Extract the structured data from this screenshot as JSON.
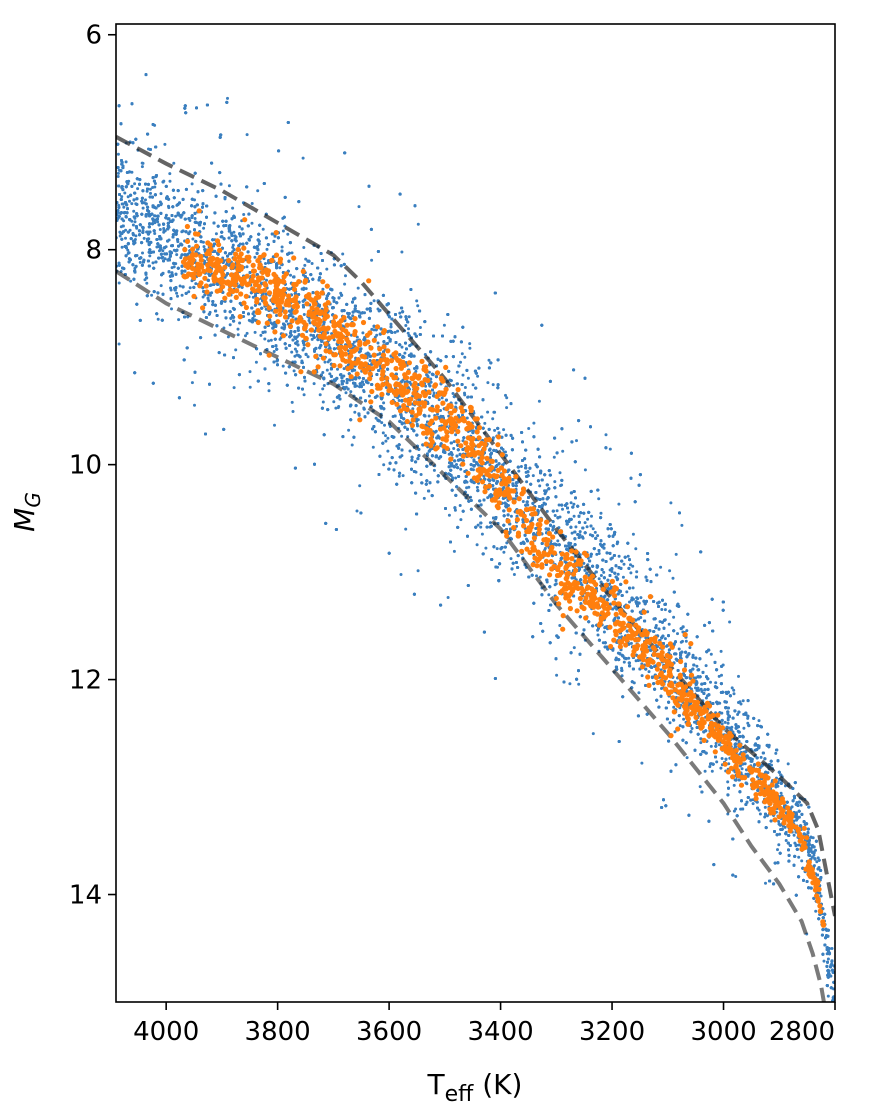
{
  "chart_data": {
    "type": "scatter",
    "title": "",
    "xlabel_main": "T",
    "xlabel_sub": "eff",
    "xlabel_unit": " (K)",
    "ylabel_main": "M",
    "ylabel_sub": "G",
    "xlim": [
      4090,
      2800
    ],
    "ylim": [
      15.0,
      5.9
    ],
    "y_inverted": true,
    "x_inverted": true,
    "grid": false,
    "legend": "none",
    "xticks": [
      4000,
      3800,
      3600,
      3400,
      3200,
      3000,
      2800
    ],
    "yticks": [
      6,
      8,
      10,
      12,
      14
    ],
    "series": [
      {
        "kind": "background-sample",
        "color": "#3a7fbf",
        "point_size": "small",
        "ridge": [
          [
            4090,
            7.65
          ],
          [
            4000,
            7.85
          ],
          [
            3900,
            8.15
          ],
          [
            3800,
            8.45
          ],
          [
            3700,
            8.8
          ],
          [
            3600,
            9.2
          ],
          [
            3500,
            9.65
          ],
          [
            3400,
            10.15
          ],
          [
            3300,
            10.65
          ],
          [
            3200,
            11.2
          ],
          [
            3100,
            11.8
          ],
          [
            3000,
            12.45
          ],
          [
            2950,
            12.8
          ],
          [
            2900,
            13.1
          ],
          [
            2850,
            13.5
          ],
          [
            2830,
            13.9
          ],
          [
            2815,
            14.5
          ],
          [
            2800,
            15.0
          ]
        ],
        "width": [
          [
            4090,
            0.65
          ],
          [
            3800,
            0.7
          ],
          [
            3600,
            0.75
          ],
          [
            3400,
            0.8
          ],
          [
            3200,
            0.7
          ],
          [
            3000,
            0.55
          ],
          [
            2900,
            0.4
          ],
          [
            2800,
            0.3
          ]
        ]
      },
      {
        "kind": "highlighted-sample",
        "color": "#ff7f0e",
        "point_size": "medium",
        "ridge": [
          [
            3970,
            8.1
          ],
          [
            3900,
            8.2
          ],
          [
            3800,
            8.4
          ],
          [
            3700,
            8.75
          ],
          [
            3600,
            9.15
          ],
          [
            3500,
            9.55
          ],
          [
            3450,
            9.8
          ],
          [
            3300,
            10.95
          ],
          [
            3200,
            11.4
          ],
          [
            3100,
            11.95
          ],
          [
            3000,
            12.6
          ],
          [
            2950,
            12.9
          ],
          [
            2900,
            13.15
          ],
          [
            2860,
            13.5
          ],
          [
            2830,
            14.0
          ],
          [
            2820,
            14.3
          ]
        ],
        "width": [
          [
            3970,
            0.25
          ],
          [
            3700,
            0.35
          ],
          [
            3500,
            0.35
          ],
          [
            3300,
            0.3
          ],
          [
            3100,
            0.25
          ],
          [
            2900,
            0.15
          ],
          [
            2820,
            0.12
          ]
        ]
      }
    ],
    "lines": [
      {
        "name": "",
        "style": "dashed",
        "color": "#222222",
        "opacity": 0.7,
        "points": [
          [
            4090,
            6.95
          ],
          [
            4000,
            7.2
          ],
          [
            3900,
            7.45
          ],
          [
            3800,
            7.75
          ],
          [
            3700,
            8.05
          ],
          [
            3650,
            8.3
          ],
          [
            3600,
            8.6
          ],
          [
            3500,
            9.2
          ],
          [
            3400,
            9.9
          ],
          [
            3300,
            10.6
          ],
          [
            3200,
            11.25
          ],
          [
            3100,
            11.85
          ],
          [
            3000,
            12.45
          ],
          [
            2900,
            12.9
          ],
          [
            2850,
            13.15
          ],
          [
            2830,
            13.4
          ],
          [
            2815,
            13.8
          ],
          [
            2800,
            14.2
          ]
        ]
      },
      {
        "name": "",
        "style": "dashed",
        "color": "#222222",
        "opacity": 0.6,
        "points": [
          [
            4090,
            8.2
          ],
          [
            4000,
            8.5
          ],
          [
            3900,
            8.75
          ],
          [
            3800,
            9.0
          ],
          [
            3700,
            9.25
          ],
          [
            3600,
            9.6
          ],
          [
            3500,
            10.1
          ],
          [
            3400,
            10.6
          ],
          [
            3300,
            11.3
          ],
          [
            3200,
            11.9
          ],
          [
            3100,
            12.5
          ],
          [
            3000,
            13.15
          ],
          [
            2950,
            13.55
          ],
          [
            2900,
            13.9
          ],
          [
            2860,
            14.25
          ],
          [
            2840,
            14.55
          ],
          [
            2825,
            14.85
          ],
          [
            2820,
            15.0
          ]
        ]
      }
    ]
  }
}
